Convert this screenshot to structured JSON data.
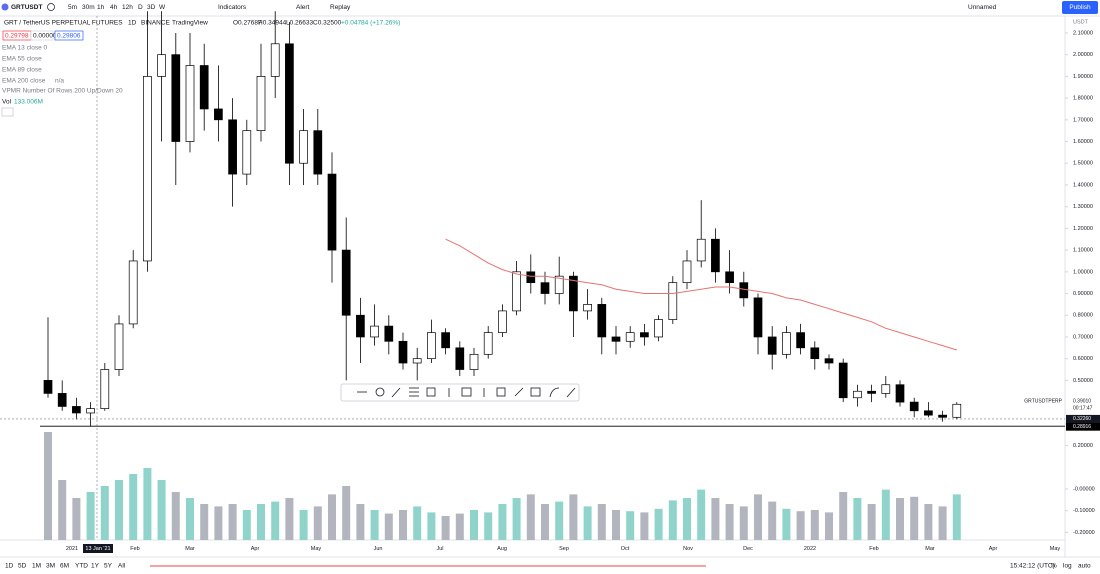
{
  "toolbar": {
    "symbol": "GRTUSDT",
    "intervals": [
      "5m",
      "30m",
      "1h",
      "4h",
      "12h",
      "D",
      "3D",
      "W"
    ],
    "indicators": "Indicators",
    "alert": "Alert",
    "replay": "Replay",
    "layout_name": "Unnamed",
    "publish": "Publish"
  },
  "legend": {
    "title": "GRT / TetherUS PERPETUAL FUTURES",
    "interval": "1D",
    "exchange": "BINANCE",
    "source": "TradingView",
    "ohlc": [
      "O0.27687",
      "H0.34944",
      "L0.26633",
      "C0.32500",
      "+0.04784 (+17.26%)"
    ],
    "boxes": [
      "0.29798",
      "0.00000",
      "0.29806"
    ],
    "studies": [
      "EMA 13 close 0",
      "EMA 55 close",
      "EMA 89 close",
      "EMA 200 close",
      "VPMR Number Of Rows 200 Up/Down 20"
    ],
    "ema200_value": "n/a",
    "volume_label": "Vol",
    "volume_value": "133.006M"
  },
  "chart_data": {
    "type": "candlestick",
    "currency": "USDT",
    "open": [
      0.5,
      0.44,
      0.38,
      0.35,
      0.37,
      0.55,
      0.76,
      1.05,
      1.9,
      2.0,
      1.6,
      1.95,
      1.75,
      1.7,
      1.45,
      1.65,
      1.9,
      2.05,
      1.5,
      1.65,
      1.45,
      1.1,
      0.8,
      0.7,
      0.75,
      0.68,
      0.58,
      0.6,
      0.72,
      0.65,
      0.55,
      0.62,
      0.72,
      0.82,
      1.0,
      0.95,
      0.9,
      0.98,
      0.82,
      0.85,
      0.7,
      0.68,
      0.72,
      0.7,
      0.78,
      0.95,
      1.05,
      1.15,
      1.0,
      0.95,
      0.88,
      0.7,
      0.62,
      0.72,
      0.65,
      0.6,
      0.58,
      0.42,
      0.45,
      0.44,
      0.48,
      0.4,
      0.36,
      0.34,
      0.33
    ],
    "high": [
      0.79,
      0.5,
      0.42,
      0.4,
      0.58,
      0.8,
      1.1,
      2.2,
      2.2,
      2.1,
      2.1,
      2.05,
      1.95,
      1.8,
      1.7,
      2.05,
      2.2,
      2.15,
      1.75,
      1.75,
      1.55,
      1.25,
      0.88,
      0.85,
      0.8,
      0.72,
      0.65,
      0.78,
      0.74,
      0.68,
      0.65,
      0.75,
      0.85,
      1.05,
      1.08,
      1.0,
      1.07,
      1.0,
      0.92,
      0.88,
      0.75,
      0.75,
      0.76,
      0.8,
      0.98,
      1.1,
      1.33,
      1.2,
      1.1,
      1.0,
      0.9,
      0.75,
      0.75,
      0.76,
      0.68,
      0.62,
      0.6,
      0.48,
      0.48,
      0.52,
      0.5,
      0.42,
      0.4,
      0.36,
      0.4
    ],
    "low": [
      0.42,
      0.36,
      0.32,
      0.29,
      0.36,
      0.52,
      0.74,
      1.0,
      1.6,
      1.4,
      1.55,
      1.65,
      1.6,
      1.3,
      1.4,
      1.6,
      1.8,
      1.4,
      1.4,
      1.4,
      0.95,
      0.5,
      0.58,
      0.66,
      0.62,
      0.55,
      0.5,
      0.58,
      0.62,
      0.52,
      0.52,
      0.6,
      0.7,
      0.8,
      0.9,
      0.85,
      0.85,
      0.7,
      0.78,
      0.62,
      0.62,
      0.65,
      0.66,
      0.68,
      0.76,
      0.92,
      1.02,
      0.95,
      0.9,
      0.84,
      0.62,
      0.55,
      0.6,
      0.62,
      0.55,
      0.55,
      0.4,
      0.38,
      0.4,
      0.42,
      0.38,
      0.33,
      0.33,
      0.31,
      0.32
    ],
    "close": [
      0.44,
      0.38,
      0.35,
      0.37,
      0.55,
      0.76,
      1.05,
      1.9,
      2.0,
      1.6,
      1.95,
      1.75,
      1.7,
      1.45,
      1.65,
      1.9,
      2.05,
      1.5,
      1.65,
      1.45,
      1.1,
      0.8,
      0.7,
      0.75,
      0.68,
      0.58,
      0.6,
      0.72,
      0.65,
      0.55,
      0.62,
      0.72,
      0.82,
      1.0,
      0.95,
      0.9,
      0.98,
      0.82,
      0.85,
      0.7,
      0.68,
      0.72,
      0.7,
      0.78,
      0.95,
      1.05,
      1.15,
      1.0,
      0.95,
      0.88,
      0.7,
      0.62,
      0.72,
      0.65,
      0.6,
      0.58,
      0.42,
      0.45,
      0.44,
      0.48,
      0.4,
      0.36,
      0.34,
      0.33,
      0.39
    ],
    "volume": [
      900,
      500,
      350,
      400,
      450,
      500,
      550,
      600,
      500,
      400,
      350,
      300,
      280,
      300,
      250,
      300,
      320,
      350,
      250,
      280,
      380,
      450,
      300,
      250,
      220,
      250,
      280,
      230,
      200,
      220,
      250,
      230,
      300,
      350,
      380,
      300,
      320,
      380,
      280,
      300,
      250,
      240,
      230,
      260,
      330,
      350,
      420,
      350,
      300,
      280,
      380,
      320,
      260,
      240,
      250,
      230,
      400,
      350,
      300,
      420,
      350,
      360,
      300,
      280,
      380
    ],
    "ema": [
      null,
      null,
      null,
      null,
      null,
      null,
      null,
      null,
      null,
      null,
      null,
      null,
      null,
      null,
      null,
      null,
      null,
      null,
      null,
      null,
      null,
      null,
      null,
      null,
      null,
      null,
      null,
      null,
      1.15,
      1.12,
      1.08,
      1.04,
      1.01,
      0.99,
      0.98,
      0.98,
      0.97,
      0.96,
      0.95,
      0.94,
      0.92,
      0.91,
      0.9,
      0.9,
      0.9,
      0.91,
      0.92,
      0.93,
      0.93,
      0.92,
      0.91,
      0.9,
      0.88,
      0.87,
      0.85,
      0.83,
      0.81,
      0.79,
      0.77,
      0.74,
      0.72,
      0.7,
      0.68,
      0.66,
      0.64
    ],
    "ema_color": "#e57373",
    "ylim": [
      -0.235,
      2.178
    ],
    "yticks": [
      {
        "value": 2.1,
        "label": "2.10000"
      },
      {
        "value": 2.0,
        "label": "2.00000"
      },
      {
        "value": 1.9,
        "label": "1.90000"
      },
      {
        "value": 1.8,
        "label": "1.80000"
      },
      {
        "value": 1.7,
        "label": "1.70000"
      },
      {
        "value": 1.6,
        "label": "1.60000"
      },
      {
        "value": 1.5,
        "label": "1.50000"
      },
      {
        "value": 1.4,
        "label": "1.40000"
      },
      {
        "value": 1.3,
        "label": "1.30000"
      },
      {
        "value": 1.2,
        "label": "1.20000"
      },
      {
        "value": 1.1,
        "label": "1.10000"
      },
      {
        "value": 1.0,
        "label": "1.00000"
      },
      {
        "value": 0.9,
        "label": "0.90000"
      },
      {
        "value": 0.8,
        "label": "0.80000"
      },
      {
        "value": 0.7,
        "label": "0.70000"
      },
      {
        "value": 0.6,
        "label": "0.60000"
      },
      {
        "value": 0.5,
        "label": "0.50000"
      },
      {
        "value": 0.3,
        "label": "0.30000"
      },
      {
        "value": 0.2,
        "label": "0.20000"
      },
      {
        "value": 0,
        "label": "-0.00000"
      },
      {
        "value": -0.1,
        "label": "-0.10000"
      },
      {
        "value": -0.2,
        "label": "-0.20000"
      }
    ],
    "xlabels": [
      "2021",
      "Feb",
      "Mar",
      "Apr",
      "May",
      "Jun",
      "Jul",
      "Aug",
      "Sep",
      "Oct",
      "Nov",
      "Dec",
      "2022",
      "Feb",
      "Mar",
      "Apr",
      "May"
    ],
    "crosshair_label": "13 Jan '21",
    "symbol_tag": "GRTUSDTPERP",
    "countdown": "00:17:47",
    "last_price": {
      "value": 0.3901,
      "label": "0.39010"
    },
    "marker_price": {
      "value": 0.3226,
      "label": "0.32260"
    },
    "hline_price": {
      "value": 0.28916,
      "label": "0.28916"
    }
  },
  "bottom_bar": {
    "ranges": [
      "1D",
      "5D",
      "1M",
      "3M",
      "6M",
      "YTD",
      "1Y",
      "5Y",
      "All"
    ],
    "clock": "15:42:12 (UTC)",
    "percent": "%",
    "log": "log",
    "auto": "auto"
  }
}
